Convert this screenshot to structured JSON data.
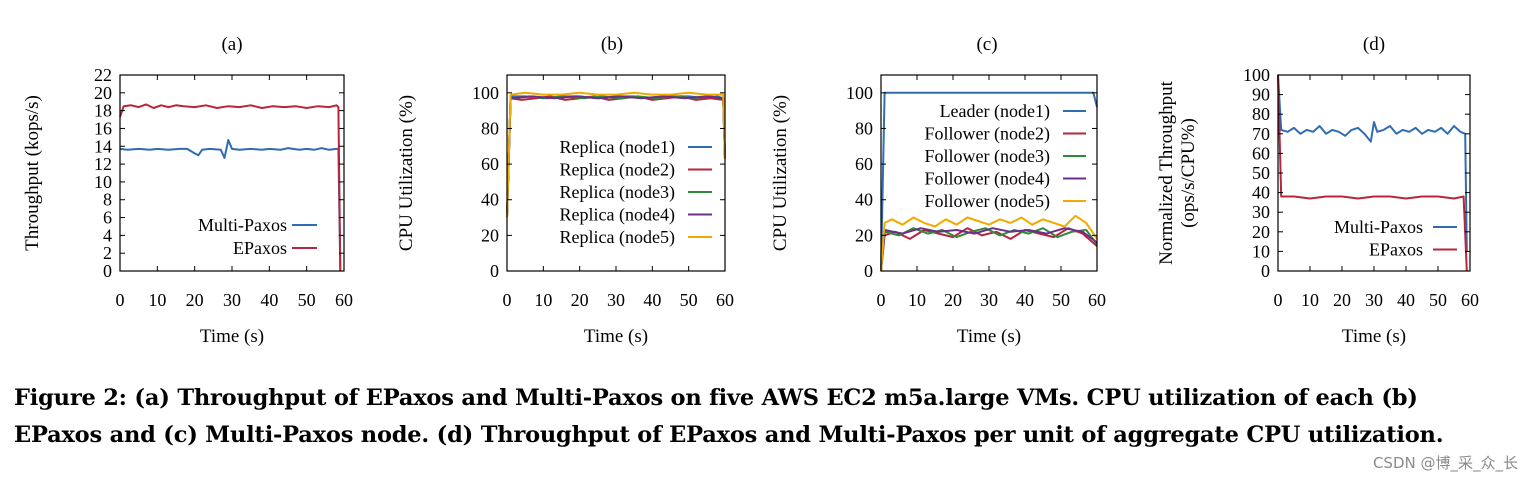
{
  "chart_data": [
    {
      "type": "line",
      "panel_label": "(a)",
      "xlabel": "Time (s)",
      "ylabel": "Throughput (kops/s)",
      "xlim": [
        0,
        60
      ],
      "ylim": [
        0,
        22
      ],
      "xticks": [
        "0",
        "10",
        "20",
        "30",
        "40",
        "50",
        "60"
      ],
      "yticks": [
        "0",
        "2",
        "4",
        "6",
        "8",
        "10",
        "12",
        "14",
        "16",
        "18",
        "20",
        "22"
      ],
      "legend_position": "bottom-right",
      "series": [
        {
          "name": "Multi-Paxos",
          "color": "#2f6db2",
          "x": [
            0,
            2,
            5,
            8,
            10,
            13,
            16,
            18,
            20,
            21,
            22,
            24,
            27,
            28,
            29,
            30,
            32,
            35,
            38,
            40,
            43,
            45,
            48,
            50,
            52,
            54,
            56,
            58,
            58.5,
            59
          ],
          "y": [
            13.7,
            13.6,
            13.7,
            13.6,
            13.7,
            13.6,
            13.7,
            13.7,
            13.2,
            13.0,
            13.6,
            13.7,
            13.6,
            12.7,
            14.7,
            13.7,
            13.6,
            13.7,
            13.6,
            13.7,
            13.6,
            13.8,
            13.6,
            13.7,
            13.6,
            13.8,
            13.6,
            13.7,
            13.7,
            0
          ]
        },
        {
          "name": "EPaxos",
          "color": "#b8253c",
          "x": [
            0,
            1,
            3,
            5,
            7,
            9,
            11,
            13,
            15,
            17,
            20,
            23,
            26,
            29,
            32,
            35,
            38,
            41,
            44,
            47,
            50,
            53,
            56,
            58,
            58.5,
            59
          ],
          "y": [
            17.3,
            18.5,
            18.6,
            18.4,
            18.7,
            18.3,
            18.6,
            18.4,
            18.6,
            18.5,
            18.4,
            18.6,
            18.3,
            18.5,
            18.4,
            18.6,
            18.3,
            18.5,
            18.4,
            18.5,
            18.3,
            18.5,
            18.4,
            18.6,
            18.4,
            0
          ]
        }
      ]
    },
    {
      "type": "line",
      "panel_label": "(b)",
      "xlabel": "Time (s)",
      "ylabel": "CPU Utilization (%)",
      "xlim": [
        0,
        60
      ],
      "ylim": [
        0,
        110
      ],
      "xticks": [
        "0",
        "10",
        "20",
        "30",
        "40",
        "50",
        "60"
      ],
      "yticks": [
        "0",
        "20",
        "40",
        "60",
        "80",
        "100"
      ],
      "legend_position": "center-right",
      "series": [
        {
          "name": "Replica (node1)",
          "color": "#2f6db2",
          "x": [
            0,
            1,
            5,
            10,
            15,
            20,
            25,
            30,
            35,
            40,
            45,
            50,
            55,
            58,
            59.5,
            60
          ],
          "y": [
            30,
            98,
            98,
            97,
            98,
            98,
            97,
            98,
            98,
            97,
            98,
            98,
            97,
            98,
            97,
            63
          ]
        },
        {
          "name": "Replica (node2)",
          "color": "#b8253c",
          "x": [
            0,
            1,
            4,
            8,
            12,
            16,
            20,
            24,
            28,
            32,
            36,
            40,
            44,
            48,
            52,
            56,
            59.5,
            60
          ],
          "y": [
            30,
            97,
            96,
            97,
            98,
            96,
            97,
            98,
            96,
            97,
            98,
            96,
            97,
            98,
            96,
            97,
            96,
            63
          ]
        },
        {
          "name": "Replica (node3)",
          "color": "#2e8b3a",
          "x": [
            0,
            1,
            6,
            11,
            16,
            21,
            26,
            31,
            36,
            41,
            46,
            51,
            56,
            59.5,
            60
          ],
          "y": [
            30,
            97,
            98,
            97,
            98,
            97,
            98,
            97,
            98,
            97,
            98,
            97,
            98,
            97,
            63
          ]
        },
        {
          "name": "Replica (node4)",
          "color": "#6b2e8a",
          "x": [
            0,
            1,
            7,
            13,
            19,
            25,
            31,
            37,
            43,
            49,
            55,
            59.5,
            60
          ],
          "y": [
            30,
            97,
            98,
            97,
            98,
            97,
            98,
            97,
            98,
            97,
            98,
            97,
            63
          ]
        },
        {
          "name": "Replica (node5)",
          "color": "#f2a900",
          "x": [
            0,
            1,
            5,
            10,
            15,
            20,
            25,
            30,
            35,
            40,
            45,
            50,
            55,
            59.5,
            60
          ],
          "y": [
            30,
            99,
            100,
            99,
            99,
            100,
            99,
            99,
            100,
            99,
            99,
            100,
            99,
            99,
            63
          ]
        }
      ]
    },
    {
      "type": "line",
      "panel_label": "(c)",
      "xlabel": "Time (s)",
      "ylabel": "CPU Utilization (%)",
      "xlim": [
        0,
        60
      ],
      "ylim": [
        0,
        110
      ],
      "xticks": [
        "0",
        "10",
        "20",
        "30",
        "40",
        "50",
        "60"
      ],
      "yticks": [
        "0",
        "20",
        "40",
        "60",
        "80",
        "100"
      ],
      "legend_position": "top-right",
      "series": [
        {
          "name": "Leader (node1)",
          "color": "#2f6db2",
          "x": [
            0,
            1,
            5,
            10,
            20,
            30,
            40,
            50,
            59,
            60
          ],
          "y": [
            0,
            100,
            100,
            100,
            100,
            100,
            100,
            100,
            100,
            92
          ]
        },
        {
          "name": "Follower (node2)",
          "color": "#b8253c",
          "x": [
            0,
            1,
            4,
            8,
            12,
            16,
            20,
            24,
            28,
            32,
            36,
            40,
            44,
            48,
            52,
            56,
            60
          ],
          "y": [
            0,
            20,
            22,
            18,
            23,
            21,
            19,
            24,
            20,
            22,
            18,
            23,
            21,
            19,
            24,
            21,
            14
          ]
        },
        {
          "name": "Follower (node3)",
          "color": "#2e8b3a",
          "x": [
            0,
            1,
            5,
            9,
            13,
            17,
            21,
            25,
            29,
            33,
            37,
            41,
            45,
            49,
            53,
            57,
            60
          ],
          "y": [
            0,
            22,
            20,
            24,
            21,
            23,
            19,
            22,
            24,
            20,
            23,
            21,
            24,
            19,
            22,
            23,
            15
          ]
        },
        {
          "name": "Follower (node4)",
          "color": "#6b2e8a",
          "x": [
            0,
            1,
            6,
            11,
            16,
            21,
            26,
            31,
            36,
            41,
            46,
            51,
            56,
            60
          ],
          "y": [
            0,
            23,
            21,
            24,
            22,
            23,
            21,
            24,
            22,
            23,
            21,
            24,
            22,
            16
          ]
        },
        {
          "name": "Follower (node5)",
          "color": "#f2a900",
          "x": [
            0,
            1,
            3,
            6,
            9,
            12,
            15,
            18,
            21,
            24,
            27,
            30,
            33,
            36,
            39,
            42,
            45,
            48,
            51,
            54,
            57,
            60
          ],
          "y": [
            0,
            27,
            29,
            26,
            30,
            27,
            25,
            29,
            26,
            30,
            28,
            26,
            29,
            27,
            30,
            26,
            29,
            27,
            25,
            31,
            27,
            18
          ]
        }
      ]
    },
    {
      "type": "line",
      "panel_label": "(d)",
      "xlabel": "Time (s)",
      "ylabel": "Normalized Throughput (ops/s/CPU%)",
      "xlim": [
        0,
        60
      ],
      "ylim": [
        0,
        100
      ],
      "xticks": [
        "0",
        "10",
        "20",
        "30",
        "40",
        "50",
        "60"
      ],
      "yticks": [
        "0",
        "10",
        "20",
        "30",
        "40",
        "50",
        "60",
        "70",
        "80",
        "90",
        "100"
      ],
      "legend_position": "bottom-right",
      "series": [
        {
          "name": "Multi-Paxos",
          "color": "#2f6db2",
          "x": [
            0,
            1,
            3,
            5,
            7,
            9,
            11,
            13,
            15,
            17,
            19,
            21,
            23,
            25,
            27,
            29,
            30,
            31,
            33,
            35,
            37,
            39,
            41,
            43,
            45,
            47,
            49,
            51,
            53,
            55,
            57,
            58.5,
            59
          ],
          "y": [
            100,
            72,
            71,
            73,
            70,
            72,
            71,
            74,
            70,
            72,
            71,
            69,
            72,
            73,
            70,
            66,
            76,
            71,
            72,
            74,
            70,
            72,
            71,
            73,
            70,
            72,
            71,
            73,
            70,
            74,
            71,
            70,
            10
          ]
        },
        {
          "name": "EPaxos",
          "color": "#b8253c",
          "x": [
            0,
            1,
            5,
            10,
            15,
            20,
            25,
            30,
            35,
            40,
            45,
            50,
            55,
            58,
            59
          ],
          "y": [
            100,
            38,
            38,
            37,
            38,
            38,
            37,
            38,
            38,
            37,
            38,
            38,
            37,
            38,
            0
          ]
        }
      ]
    }
  ],
  "caption": {
    "line1": "Figure 2: (a) Throughput of EPaxos and Multi-Paxos on five AWS EC2 m5a.large VMs. CPU utilization of each (b)",
    "line2": "EPaxos and (c) Multi-Paxos node. (d) Throughput of EPaxos and Multi-Paxos per unit of aggregate CPU utilization."
  },
  "watermark": "CSDN @博_采_众_长"
}
